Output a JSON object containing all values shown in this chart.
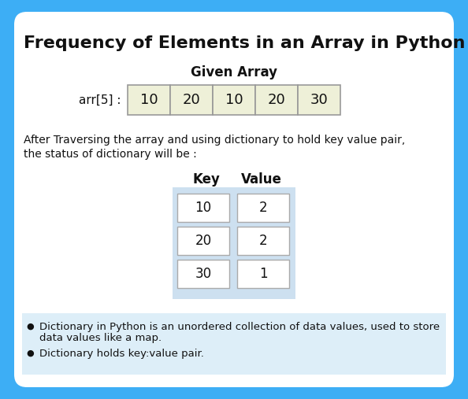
{
  "title": "Frequency of Elements in an Array in Python",
  "background_outer": "#3daef5",
  "background_inner": "#ffffff",
  "given_array_label": "Given Array",
  "arr_label": "arr[5] :",
  "arr_values": [
    "10",
    "20",
    "10",
    "20",
    "30"
  ],
  "arr_cell_bg": "#eef0d8",
  "arr_cell_border": "#999999",
  "description_line1": "After Traversing the array and using dictionary to hold key value pair,",
  "description_line2": "the status of dictionary will be :",
  "table_header_key": "Key",
  "table_header_value": "Value",
  "table_rows": [
    [
      "10",
      "2"
    ],
    [
      "20",
      "2"
    ],
    [
      "30",
      "1"
    ]
  ],
  "table_bg": "#cde0f0",
  "table_cell_bg": "#ffffff",
  "table_cell_border": "#aaaaaa",
  "bullet1a": "Dictionary in Python is an unordered collection of data values, used to store",
  "bullet1b": "data values like a map.",
  "bullet2": "Dictionary holds key:value pair.",
  "bullet_bg": "#ddeef8",
  "title_fontsize": 16,
  "body_fontsize": 10
}
